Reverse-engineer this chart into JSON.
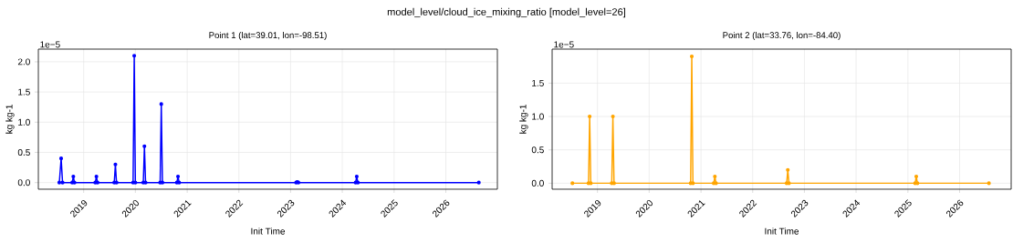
{
  "chart_data": [
    {
      "type": "line",
      "title": "Point 1 (lat=39.01, lon=-98.51)",
      "xlabel": "Init Time",
      "ylabel": "kg kg-1",
      "annotations": [
        "model_level/cloud_ice_mixing_ratio [model_level=26]",
        "1e−5"
      ],
      "x": [
        "2018-07-13",
        "2018-07-26",
        "2018-08-05",
        "2018-10-12",
        "2018-10-20",
        "2018-10-28",
        "2019-03-24",
        "2019-04-01",
        "2019-04-09",
        "2019-08-05",
        "2019-08-13",
        "2019-08-21",
        "2019-12-16",
        "2019-12-24",
        "2020-01-01",
        "2020-02-26",
        "2020-03-05",
        "2020-03-13",
        "2020-06-24",
        "2020-07-02",
        "2020-07-10",
        "2020-10-20",
        "2020-10-28",
        "2020-11-05",
        "2023-02-09",
        "2023-02-17",
        "2023-02-25",
        "2024-04-04",
        "2024-04-12",
        "2024-04-20",
        "2026-08-22"
      ],
      "values": [
        0,
        0.4,
        0,
        0,
        0.1,
        0,
        0,
        0.1,
        0,
        0,
        0.3,
        0,
        0,
        2.1,
        0,
        0,
        0.6,
        0,
        0,
        1.3,
        0,
        0,
        0.1,
        0,
        0,
        0.01,
        0,
        0,
        0.1,
        0,
        0
      ],
      "color": "#0000ff",
      "marker": "circle",
      "grid": true,
      "xlim": [
        "2018-02-15",
        "2026-12-31"
      ],
      "xticks": [
        "2019",
        "2020",
        "2021",
        "2022",
        "2023",
        "2024",
        "2025",
        "2026"
      ],
      "ylim": [
        -0.11,
        2.21
      ],
      "yticks": [
        {
          "value": 0,
          "label": "0.0"
        },
        {
          "value": 0.5,
          "label": "0.5"
        },
        {
          "value": 1,
          "label": "1.0"
        },
        {
          "value": 1.5,
          "label": "1.5"
        },
        {
          "value": 2,
          "label": "2.0"
        }
      ]
    },
    {
      "type": "line",
      "title": "Point 2 (lat=33.76, lon=-84.40)",
      "xlabel": "Init Time",
      "ylabel": "kg kg-1",
      "annotations": [
        "1e−5"
      ],
      "x": [
        "2018-07-08",
        "2018-10-30",
        "2018-11-07",
        "2018-11-15",
        "2019-04-12",
        "2019-04-20",
        "2019-04-28",
        "2020-10-20",
        "2020-10-28",
        "2020-11-05",
        "2021-04-01",
        "2021-04-09",
        "2021-04-17",
        "2022-08-29",
        "2022-09-06",
        "2022-09-14",
        "2025-02-21",
        "2025-03-01",
        "2025-03-09",
        "2026-07-27"
      ],
      "values": [
        0,
        0,
        1.0,
        0,
        0,
        1.0,
        0,
        0,
        1.9,
        0,
        0,
        0.1,
        0,
        0,
        0.2,
        0,
        0,
        0.1,
        0,
        0
      ],
      "color": "#ffa500",
      "marker": "circle",
      "grid": true,
      "xlim": [
        "2018-02-15",
        "2026-12-31"
      ],
      "xticks": [
        "2019",
        "2020",
        "2021",
        "2022",
        "2023",
        "2024",
        "2025",
        "2026"
      ],
      "ylim": [
        -0.09,
        2.01
      ],
      "yticks": [
        {
          "value": 0,
          "label": "0.0"
        },
        {
          "value": 0.5,
          "label": "0.5"
        },
        {
          "value": 1,
          "label": "1.0"
        },
        {
          "value": 1.5,
          "label": "1.5"
        }
      ]
    }
  ]
}
